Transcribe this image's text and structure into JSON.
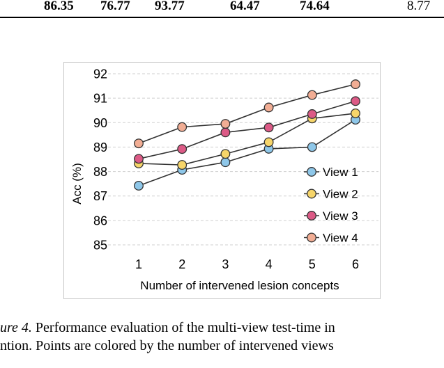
{
  "table": {
    "cells": [
      "86.35",
      "76.77",
      "93.77",
      "64.47",
      "74.64",
      "8.77"
    ]
  },
  "chart_data": {
    "type": "line",
    "xlabel": "Number of intervened lesion concepts",
    "ylabel": "Acc (%)",
    "x": [
      1,
      2,
      3,
      4,
      5,
      6
    ],
    "xticks": [
      "1",
      "2",
      "3",
      "4",
      "5",
      "6"
    ],
    "yticks": [
      "85",
      "86",
      "87",
      "88",
      "89",
      "90",
      "91",
      "92"
    ],
    "ylim": [
      85,
      92
    ],
    "grid": "horizontal dashed",
    "legend_position": "lower-right",
    "series": [
      {
        "name": "View 1",
        "color": "#8ec7e9",
        "values": [
          87.42,
          88.07,
          88.38,
          88.93,
          89.0,
          90.12
        ]
      },
      {
        "name": "View 2",
        "color": "#f6d56a",
        "values": [
          88.33,
          88.27,
          88.72,
          89.2,
          90.17,
          90.38
        ]
      },
      {
        "name": "View 3",
        "color": "#dc5a86",
        "values": [
          88.52,
          88.92,
          89.6,
          89.8,
          90.35,
          90.88
        ]
      },
      {
        "name": "View 4",
        "color": "#f1ad94",
        "values": [
          89.15,
          89.82,
          89.95,
          90.62,
          91.13,
          91.57
        ]
      }
    ]
  },
  "caption": {
    "line1_label": "ure 4.",
    "line1_text": " Performance evaluation of the multi-view test-time in",
    "line2_text": "ntion. Points are colored by the number of intervened views"
  }
}
